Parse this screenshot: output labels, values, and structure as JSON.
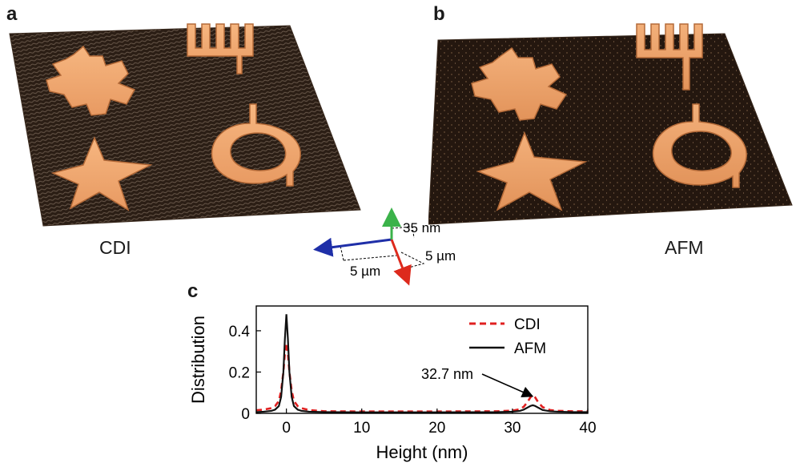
{
  "panels": {
    "a": {
      "letter": "a",
      "caption": "CDI"
    },
    "b": {
      "letter": "b",
      "caption": "AFM"
    },
    "c": {
      "letter": "c"
    }
  },
  "axes_triad": {
    "z_label": "35 nm",
    "y_label": "5 µm",
    "x_label": "5 µm",
    "colors": {
      "x": "#1f2fa8",
      "y": "#dd2a1d",
      "z": "#3bb24a"
    }
  },
  "colors": {
    "surface_dark": "#2a1d14",
    "feature": "#f0a36b",
    "cdi_line": "#e02020",
    "afm_line": "#111111"
  },
  "chart_data": {
    "type": "line",
    "xlabel": "Height (nm)",
    "ylabel": "Distribution",
    "xlim": [
      -4,
      40
    ],
    "ylim": [
      0,
      0.52
    ],
    "xticks": [
      0,
      10,
      20,
      30,
      40
    ],
    "yticks": [
      0,
      0.2,
      0.4
    ],
    "xtick_labels": [
      "0",
      "10",
      "20",
      "30",
      "40"
    ],
    "ytick_labels": [
      "0",
      "0.2",
      "0.4"
    ],
    "legend_position": "top-right",
    "series": [
      {
        "name": "CDI",
        "style": "dashed",
        "color": "#e02020",
        "x": [
          -4,
          -3,
          -2,
          -1.5,
          -1,
          -0.7,
          -0.4,
          -0.2,
          0,
          0.2,
          0.4,
          0.7,
          1,
          1.5,
          2,
          3,
          5,
          10,
          20,
          28,
          30,
          31,
          31.5,
          32,
          32.4,
          32.7,
          33,
          33.4,
          34,
          35,
          36,
          38,
          40
        ],
        "y": [
          0.015,
          0.018,
          0.025,
          0.035,
          0.06,
          0.11,
          0.2,
          0.29,
          0.34,
          0.29,
          0.2,
          0.11,
          0.06,
          0.035,
          0.025,
          0.016,
          0.01,
          0.009,
          0.009,
          0.01,
          0.013,
          0.02,
          0.032,
          0.055,
          0.078,
          0.088,
          0.078,
          0.055,
          0.03,
          0.016,
          0.012,
          0.01,
          0.01
        ]
      },
      {
        "name": "AFM",
        "style": "solid",
        "color": "#111111",
        "x": [
          -4,
          -3,
          -2,
          -1.5,
          -1,
          -0.7,
          -0.4,
          -0.2,
          0,
          0.2,
          0.4,
          0.7,
          1,
          1.5,
          2,
          3,
          5,
          10,
          20,
          28,
          30,
          31,
          31.5,
          32,
          32.4,
          32.7,
          33,
          33.4,
          34,
          35,
          36,
          38,
          40
        ],
        "y": [
          0.006,
          0.008,
          0.012,
          0.018,
          0.035,
          0.08,
          0.2,
          0.36,
          0.48,
          0.36,
          0.2,
          0.08,
          0.035,
          0.018,
          0.012,
          0.008,
          0.006,
          0.005,
          0.005,
          0.006,
          0.008,
          0.012,
          0.018,
          0.028,
          0.036,
          0.039,
          0.036,
          0.028,
          0.016,
          0.01,
          0.008,
          0.006,
          0.006
        ]
      }
    ],
    "annotations": [
      {
        "text": "32.7 nm",
        "arrow_to_x": 32.7,
        "arrow_to_y": 0.07
      }
    ]
  }
}
